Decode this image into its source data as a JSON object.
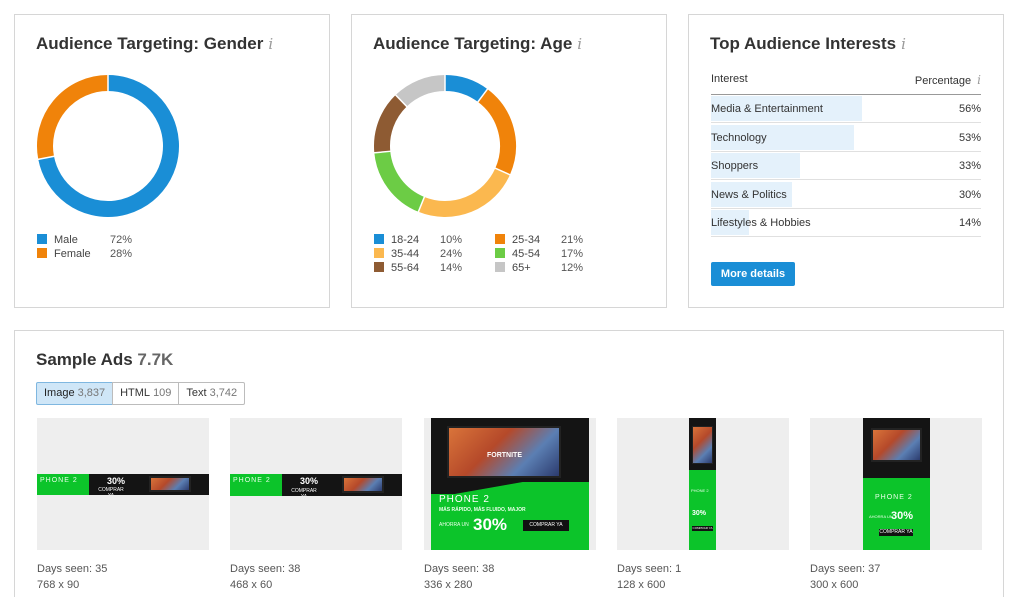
{
  "gender_card": {
    "title": "Audience Targeting: Gender",
    "info_icon": "i",
    "legend": [
      {
        "label": "Male",
        "pct": "72%",
        "color": "#1a8ed6",
        "value": 72
      },
      {
        "label": "Female",
        "pct": "28%",
        "color": "#f0830a",
        "value": 28
      }
    ]
  },
  "age_card": {
    "title": "Audience Targeting: Age",
    "info_icon": "i",
    "legend": [
      {
        "label": "18-24",
        "pct": "10%",
        "color": "#1a8ed6",
        "value": 10
      },
      {
        "label": "25-34",
        "pct": "21%",
        "color": "#f0830a",
        "value": 21
      },
      {
        "label": "35-44",
        "pct": "24%",
        "color": "#fbb84f",
        "value": 24
      },
      {
        "label": "45-54",
        "pct": "17%",
        "color": "#6ccc45",
        "value": 17
      },
      {
        "label": "55-64",
        "pct": "14%",
        "color": "#8e5b33",
        "value": 14
      },
      {
        "label": "65+",
        "pct": "12%",
        "color": "#c6c6c6",
        "value": 12
      }
    ]
  },
  "interests_card": {
    "title": "Top Audience Interests",
    "info_icon": "i",
    "col_interest": "Interest",
    "col_percentage": "Percentage",
    "rows": [
      {
        "name": "Media & Entertainment",
        "pct": "56%",
        "value": 56
      },
      {
        "name": "Technology",
        "pct": "53%",
        "value": 53
      },
      {
        "name": "Shoppers",
        "pct": "33%",
        "value": 33
      },
      {
        "name": "News & Politics",
        "pct": "30%",
        "value": 30
      },
      {
        "name": "Lifestyles & Hobbies",
        "pct": "14%",
        "value": 14
      }
    ],
    "button": "More details"
  },
  "sample_ads": {
    "title": "Sample Ads",
    "count": "7.7K",
    "tabs": [
      {
        "label": "Image",
        "count": "3,837",
        "active": true
      },
      {
        "label": "HTML",
        "count": "109",
        "active": false
      },
      {
        "label": "Text",
        "count": "3,742",
        "active": false
      }
    ],
    "ads": [
      {
        "days": "Days seen: 35",
        "size": "768 x 90"
      },
      {
        "days": "Days seen: 38",
        "size": "468 x 60"
      },
      {
        "days": "Days seen: 38",
        "size": "336 x 280"
      },
      {
        "days": "Days seen: 1",
        "size": "128 x 600"
      },
      {
        "days": "Days seen: 37",
        "size": "300 x 600"
      }
    ],
    "banner": {
      "headline": "PHONE 2",
      "tagline": "MÁS RÁPIDO, MÁS FLUIDO, MAJOR",
      "offer_prefix": "AHORRA UN",
      "offer": "30%",
      "cta": "COMPRAR YA",
      "game": "FORTNITE"
    }
  }
}
